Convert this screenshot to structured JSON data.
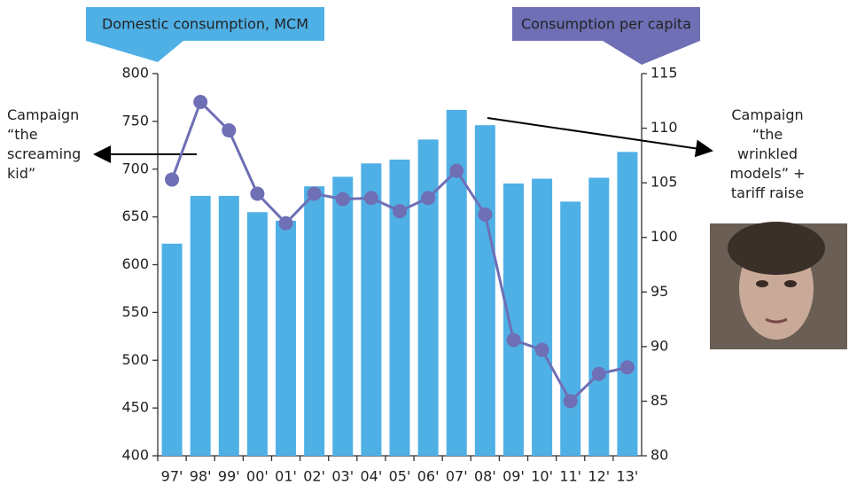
{
  "chart_data": {
    "type": "bar",
    "categories": [
      "97'",
      "98'",
      "99'",
      "00'",
      "01'",
      "02'",
      "03'",
      "04'",
      "05'",
      "06'",
      "07'",
      "08'",
      "09'",
      "10'",
      "11'",
      "12'",
      "13'"
    ],
    "series": [
      {
        "name": "Domestic consumption, MCM",
        "type": "bar",
        "color": "#4fb0e6",
        "values": [
          622,
          672,
          672,
          655,
          646,
          682,
          692,
          706,
          710,
          731,
          762,
          746,
          685,
          690,
          666,
          691,
          718
        ]
      },
      {
        "name": "Consumption per capita",
        "type": "line",
        "axis": "y2",
        "color": "#6e6fb5",
        "values": [
          105.3,
          112.4,
          109.8,
          104.0,
          101.3,
          104.0,
          103.5,
          103.6,
          102.4,
          103.6,
          106.1,
          102.1,
          90.6,
          89.7,
          85.0,
          87.5,
          88.1
        ]
      }
    ],
    "ylim": [
      400,
      800
    ],
    "yticks": [
      400,
      450,
      500,
      550,
      600,
      650,
      700,
      750,
      800
    ],
    "y2lim": [
      80,
      115
    ],
    "y2ticks": [
      80,
      85,
      90,
      95,
      100,
      105,
      110,
      115
    ],
    "annotations": [
      {
        "lines": [
          "Campaign",
          "“the",
          "screaming",
          "kid”"
        ]
      },
      {
        "lines": [
          "Campaign",
          "“the",
          "wrinkled",
          "models” +",
          "tariff raise"
        ]
      }
    ]
  }
}
